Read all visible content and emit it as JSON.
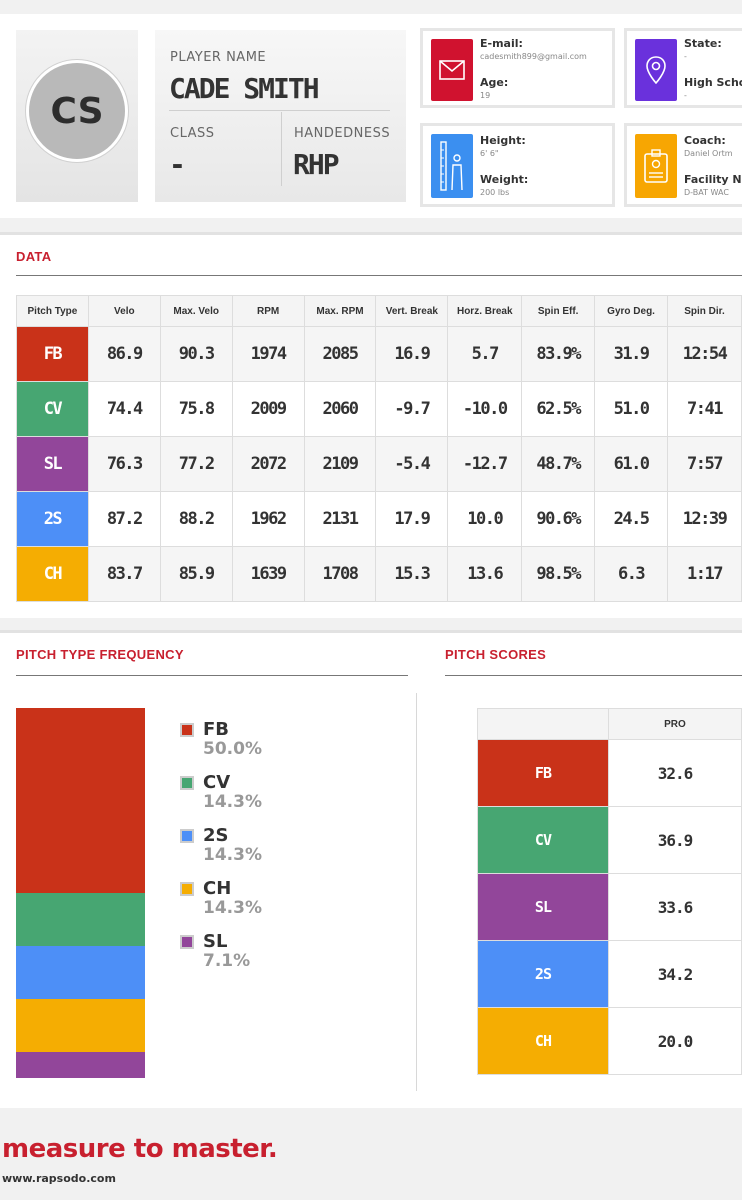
{
  "player": {
    "initials": "CS",
    "name_label": "PLAYER NAME",
    "name": "CADE SMITH",
    "class_label": "CLASS",
    "class_value": "-",
    "handedness_label": "HANDEDNESS",
    "handedness_value": "RHP"
  },
  "info": {
    "email_label": "E-mail:",
    "email_value": "cadesmith899@gmail.com",
    "age_label": "Age:",
    "age_value": "19",
    "state_label": "State:",
    "state_value": "-",
    "high_school_label": "High Scho",
    "high_school_value": "-",
    "height_label": "Height:",
    "height_value": "6' 6\"",
    "weight_label": "Weight:",
    "weight_value": "200 lbs",
    "coach_label": "Coach:",
    "coach_value": "Daniel Ortm",
    "facility_label": "Facility Na",
    "facility_value": "D-BAT WAC"
  },
  "data_section": {
    "title": "DATA",
    "headers": [
      "Pitch Type",
      "Velo",
      "Max. Velo",
      "RPM",
      "Max. RPM",
      "Vert. Break",
      "Horz. Break",
      "Spin Eff.",
      "Gyro Deg.",
      "Spin Dir."
    ],
    "rows": [
      [
        "FB",
        "86.9",
        "90.3",
        "1974",
        "2085",
        "16.9",
        "5.7",
        "83.9%",
        "31.9",
        "12:54"
      ],
      [
        "CV",
        "74.4",
        "75.8",
        "2009",
        "2060",
        "-9.7",
        "-10.0",
        "62.5%",
        "51.0",
        "7:41"
      ],
      [
        "SL",
        "76.3",
        "77.2",
        "2072",
        "2109",
        "-5.4",
        "-12.7",
        "48.7%",
        "61.0",
        "7:57"
      ],
      [
        "2S",
        "87.2",
        "88.2",
        "1962",
        "2131",
        "17.9",
        "10.0",
        "90.6%",
        "24.5",
        "12:39"
      ],
      [
        "CH",
        "83.7",
        "85.9",
        "1639",
        "1708",
        "15.3",
        "13.6",
        "98.5%",
        "6.3",
        "1:17"
      ]
    ]
  },
  "colors": {
    "FB": "#c93219",
    "CV": "#47a672",
    "SL": "#92469a",
    "2S": "#4d8ff7",
    "CH": "#f5ad02",
    "email_icon": "#d0122f",
    "state_icon": "#6a31dc",
    "height_icon": "#3b8ff0",
    "coach_icon": "#f7a602",
    "accent": "#c8202f"
  },
  "frequency": {
    "title": "PITCH TYPE FREQUENCY",
    "items": [
      {
        "name": "FB",
        "pct": "50.0%"
      },
      {
        "name": "CV",
        "pct": "14.3%"
      },
      {
        "name": "2S",
        "pct": "14.3%"
      },
      {
        "name": "CH",
        "pct": "14.3%"
      },
      {
        "name": "SL",
        "pct": "7.1%"
      }
    ]
  },
  "chart_data": {
    "type": "bar",
    "title": "PITCH TYPE FREQUENCY",
    "categories": [
      "FB",
      "CV",
      "2S",
      "CH",
      "SL"
    ],
    "values": [
      50.0,
      14.3,
      14.3,
      14.3,
      7.1
    ],
    "stacked": true,
    "ylim": [
      0,
      100
    ],
    "legend": "right"
  },
  "scores": {
    "title": "PITCH SCORES",
    "header": "PRO",
    "rows": [
      {
        "name": "FB",
        "value": "32.6"
      },
      {
        "name": "CV",
        "value": "36.9"
      },
      {
        "name": "SL",
        "value": "33.6"
      },
      {
        "name": "2S",
        "value": "34.2"
      },
      {
        "name": "CH",
        "value": "20.0"
      }
    ]
  },
  "footer": {
    "tagline": "measure to master.",
    "url": "www.rapsodo.com"
  }
}
